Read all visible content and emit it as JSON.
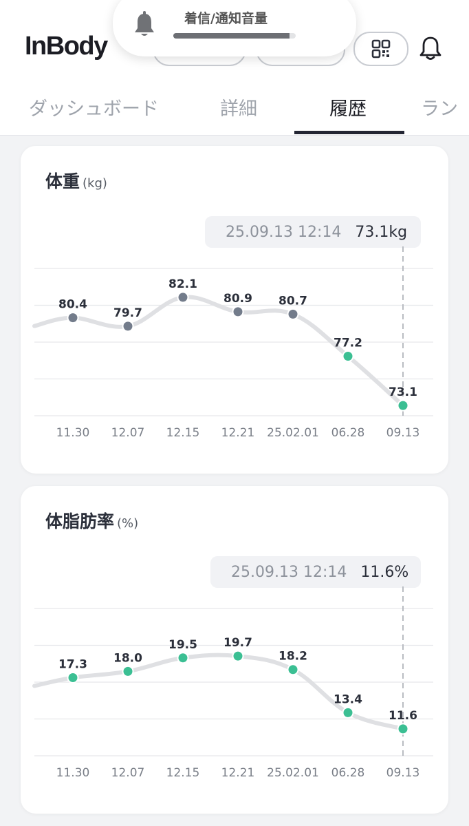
{
  "app": {
    "logo": "InBody"
  },
  "volume_hud": {
    "label": "着信/通知音量",
    "level": 0.95,
    "icon": "bell-icon"
  },
  "header_icons": {
    "qr": "qr-code-icon",
    "notifications": "bell-icon"
  },
  "tabs": [
    {
      "label": "ダッシュボード",
      "active": false
    },
    {
      "label": "詳細",
      "active": false
    },
    {
      "label": "履歴",
      "active": true
    },
    {
      "label": "ラン",
      "active": false
    }
  ],
  "colors": {
    "accent_green": "#3bbf93",
    "past_point": "#737c8b",
    "line": "#dfe0e3",
    "grid": "#e6e8eb"
  },
  "cards": [
    {
      "title": "体重",
      "unit": "(kg)",
      "tooltip": {
        "date": "25.09.13 12:14",
        "value": "73.1kg"
      }
    },
    {
      "title": "体脂肪率",
      "unit": "(%)",
      "tooltip": {
        "date": "25.09.13 12:14",
        "value": "11.6%"
      }
    }
  ],
  "chart_data": [
    {
      "type": "line",
      "title": "体重",
      "categories": [
        "11.30",
        "12.07",
        "12.15",
        "12.21",
        "25.02.01",
        "06.28",
        "09.13"
      ],
      "values": [
        80.4,
        79.7,
        82.1,
        80.9,
        80.7,
        77.2,
        73.1
      ],
      "labels": [
        "80.4",
        "79.7",
        "82.1",
        "80.9",
        "80.7",
        "77.2",
        "73.1"
      ],
      "highlight_from_index": 5,
      "ylim": [
        72.25,
        84.5
      ],
      "grid": true,
      "selected_index": 6
    },
    {
      "type": "line",
      "title": "体脂肪率",
      "categories": [
        "11.30",
        "12.07",
        "12.15",
        "12.21",
        "25.02.01",
        "06.28",
        "09.13"
      ],
      "values": [
        17.3,
        18.0,
        19.5,
        19.7,
        18.2,
        13.4,
        11.6
      ],
      "labels": [
        "17.3",
        "18.0",
        "19.5",
        "19.7",
        "18.2",
        "13.4",
        "11.6"
      ],
      "highlight_from_index": 0,
      "ylim": [
        8.6,
        25
      ],
      "grid": true,
      "selected_index": 6
    }
  ]
}
